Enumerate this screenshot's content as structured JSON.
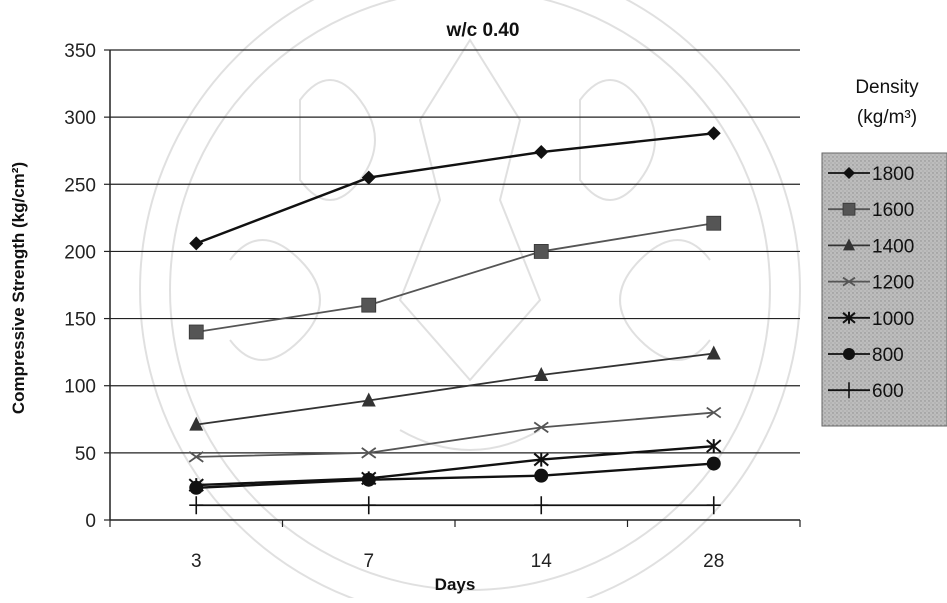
{
  "chart_data": {
    "type": "line",
    "title": "w/c 0.40",
    "xlabel": "Days",
    "ylabel": "Compressive Strength (kg/cm²)",
    "categories": [
      "3",
      "7",
      "14",
      "28"
    ],
    "ylim": [
      0,
      350
    ],
    "yticks": [
      "0",
      "50",
      "100",
      "150",
      "200",
      "250",
      "300",
      "350"
    ],
    "grid": "horizontal",
    "legend_position": "right",
    "legend_title_line1": "Density",
    "legend_title_line2": "(kg/m³)",
    "series": [
      {
        "name": "1800",
        "values": [
          206,
          255,
          274,
          288
        ],
        "marker": "diamond",
        "color": "#111111"
      },
      {
        "name": "1600",
        "values": [
          140,
          160,
          200,
          221
        ],
        "marker": "square",
        "color": "#555555"
      },
      {
        "name": "1400",
        "values": [
          71,
          89,
          108,
          124
        ],
        "marker": "triangle",
        "color": "#333333"
      },
      {
        "name": "1200",
        "values": [
          47,
          50,
          69,
          80
        ],
        "marker": "x",
        "color": "#555555"
      },
      {
        "name": "1000",
        "values": [
          26,
          31,
          45,
          55
        ],
        "marker": "star",
        "color": "#111111"
      },
      {
        "name": "800",
        "values": [
          24,
          30,
          33,
          42
        ],
        "marker": "circle",
        "color": "#111111"
      },
      {
        "name": "600",
        "values": [
          11,
          11,
          11,
          11
        ],
        "marker": "plus",
        "color": "#111111"
      }
    ]
  }
}
